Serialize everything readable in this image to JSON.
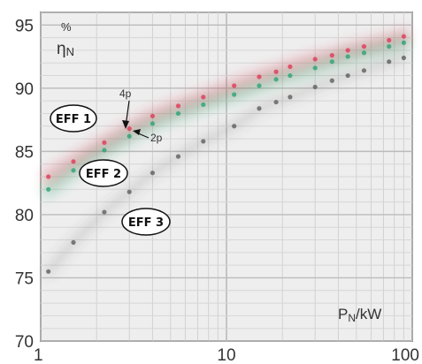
{
  "chart_data": {
    "type": "scatter",
    "title": "",
    "xlabel": "P",
    "xlabel_sub": "N",
    "xlabel_unit": "/kW",
    "ylabel_unit": "%",
    "ylabel": "η",
    "ylabel_sub": "N",
    "x_scale": "log",
    "xlim": [
      1,
      100
    ],
    "ylim": [
      70,
      96
    ],
    "grid": true,
    "x_ticks": [
      {
        "value": 1,
        "label": "1"
      },
      {
        "value": 10,
        "label": "10"
      },
      {
        "value": 100,
        "label": "100"
      }
    ],
    "y_ticks": [
      {
        "value": 70,
        "label": "70"
      },
      {
        "value": 75,
        "label": "75"
      },
      {
        "value": 80,
        "label": "80"
      },
      {
        "value": 85,
        "label": "85"
      },
      {
        "value": 90,
        "label": "90"
      },
      {
        "value": 95,
        "label": "95"
      }
    ],
    "x": [
      1.1,
      1.5,
      2.2,
      3,
      4,
      5.5,
      7.5,
      11,
      15,
      18.5,
      22,
      30,
      37,
      45,
      55,
      75,
      90
    ],
    "series": [
      {
        "name": "EFF 1",
        "color": "#e03050",
        "values": [
          83.0,
          84.2,
          85.7,
          86.8,
          87.8,
          88.6,
          89.3,
          90.2,
          90.9,
          91.3,
          91.7,
          92.3,
          92.6,
          93.0,
          93.3,
          93.8,
          94.1
        ]
      },
      {
        "name": "EFF 2",
        "color": "#20a070",
        "values": [
          82.0,
          83.5,
          85.1,
          86.2,
          87.2,
          88.0,
          88.7,
          89.5,
          90.2,
          90.7,
          91.0,
          91.6,
          92.1,
          92.5,
          92.8,
          93.3,
          93.6
        ]
      },
      {
        "name": "EFF 3",
        "color": "#555555",
        "values": [
          75.5,
          77.8,
          80.2,
          81.8,
          83.3,
          84.6,
          85.8,
          87.0,
          88.4,
          88.9,
          89.3,
          90.1,
          90.6,
          91.0,
          91.4,
          92.1,
          92.4
        ]
      }
    ],
    "labels": {
      "eff1": "EFF 1",
      "eff2": "EFF 2",
      "eff3": "EFF 3",
      "pole4": "4p",
      "pole2": "2p"
    }
  }
}
